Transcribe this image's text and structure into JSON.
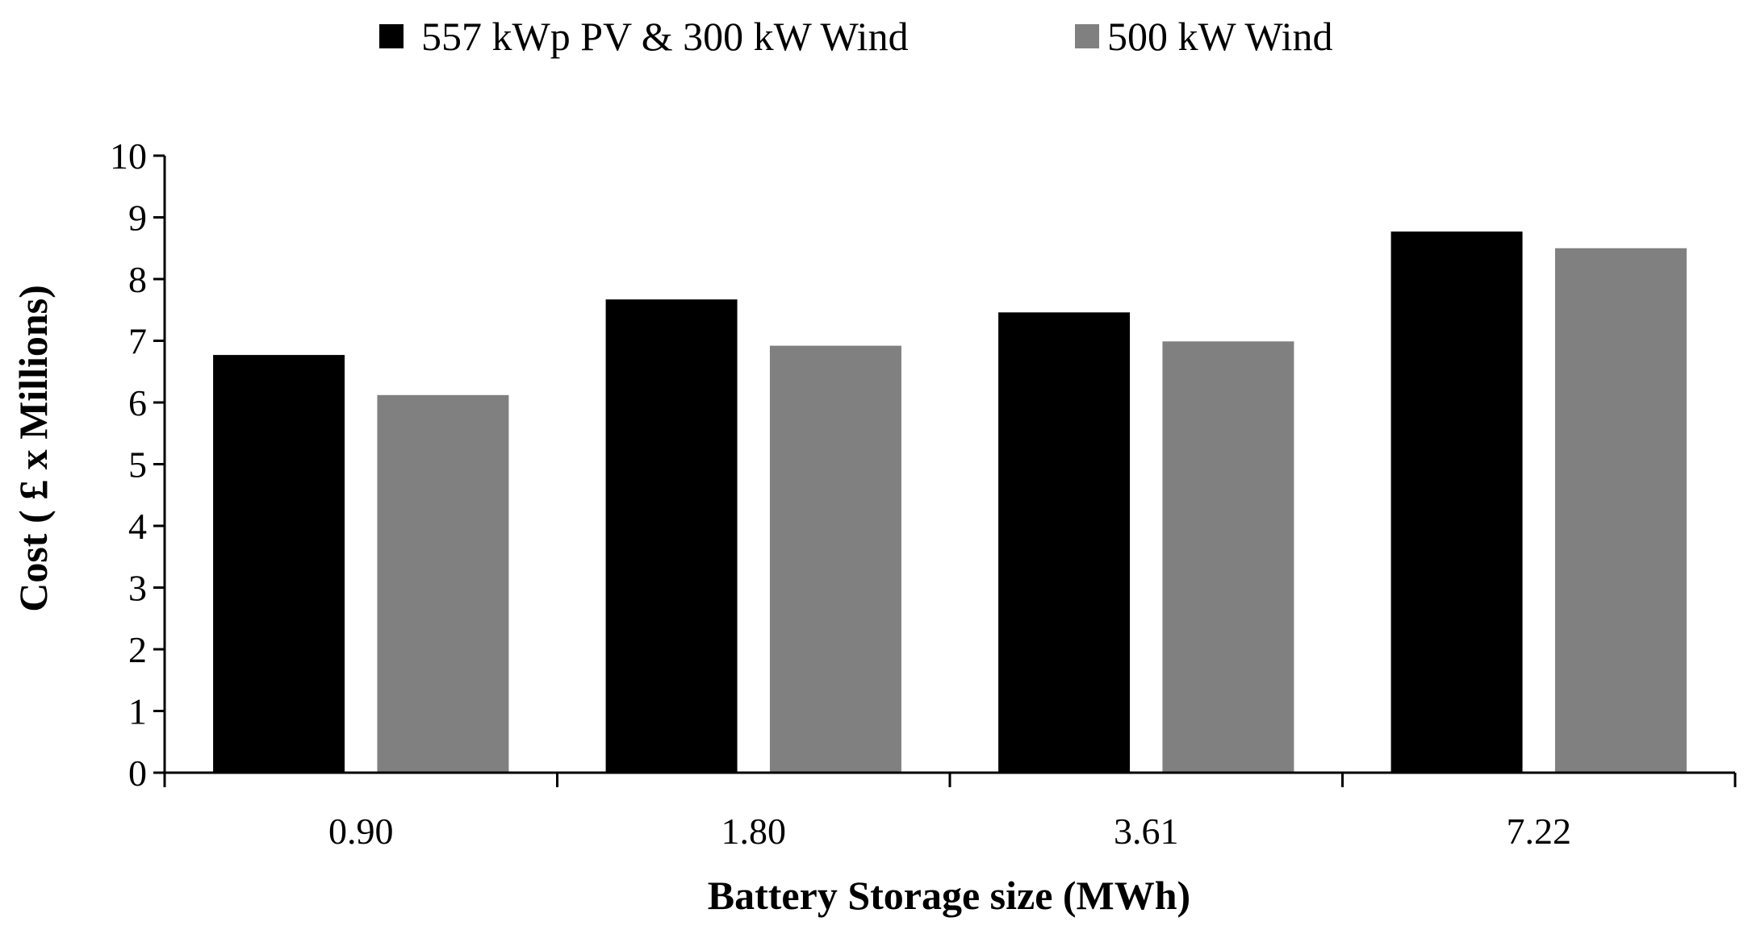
{
  "chart_data": {
    "type": "bar",
    "title": "",
    "xlabel": "Battery Storage size (MWh)",
    "ylabel": "Cost ( £ x Millions)",
    "categories": [
      "0.90",
      "1.80",
      "3.61",
      "7.22"
    ],
    "series": [
      {
        "name": "557 kWp PV & 300 kW Wind",
        "color": "#000000",
        "values": [
          6.77,
          7.67,
          7.46,
          8.77
        ]
      },
      {
        "name": "500 kW Wind",
        "color": "#808080",
        "values": [
          6.12,
          6.92,
          6.99,
          8.5
        ]
      }
    ],
    "ylim": [
      0,
      10
    ],
    "yticks": [
      "0",
      "1",
      "2",
      "3",
      "4",
      "5",
      "6",
      "7",
      "8",
      "9",
      "10"
    ],
    "grid": false,
    "legend_position": "top-center"
  }
}
